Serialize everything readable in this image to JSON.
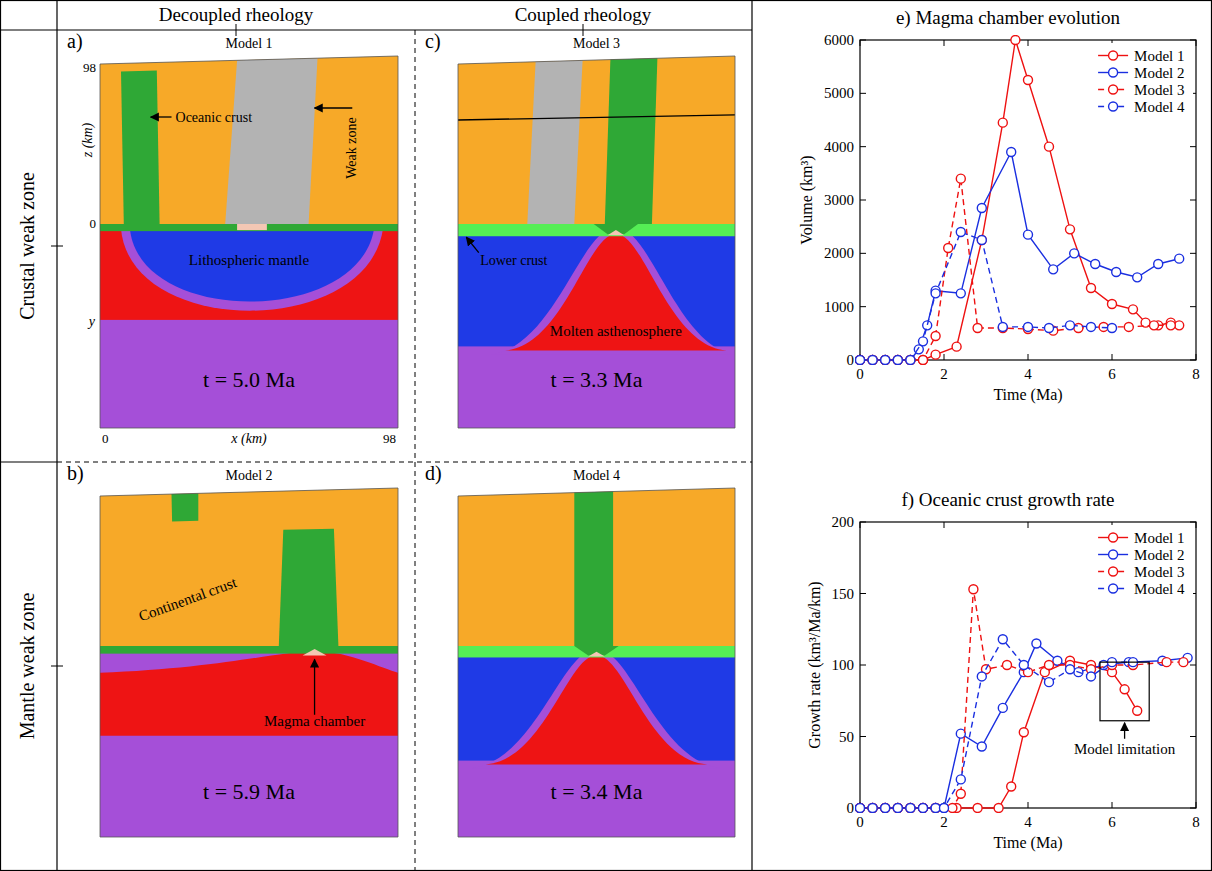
{
  "header": {
    "columns": [
      "Decoupled rheology",
      "Coupled rheology"
    ],
    "rows": [
      "Crustal weak zone",
      "Mantle weak zone"
    ]
  },
  "panels": [
    {
      "letter": "a)",
      "title": "Model 1",
      "time": "t = 5.0 Ma",
      "labels": [
        "Oceanic crust",
        "Weak zone",
        "Lithospheric mantle"
      ],
      "axes": {
        "z_max": "98",
        "z_label": "z (km)",
        "z_min": "0",
        "y_label": "y",
        "x_min": "0",
        "x_label": "x (km)",
        "x_max": "98"
      }
    },
    {
      "letter": "b)",
      "title": "Model 2",
      "time": "t = 5.9 Ma",
      "labels": [
        "Continental crust",
        "Magma chamber"
      ]
    },
    {
      "letter": "c)",
      "title": "Model 3",
      "time": "t = 3.3 Ma",
      "labels": [
        "Lower crust",
        "Molten asthenosphere"
      ]
    },
    {
      "letter": "d)",
      "title": "Model 4",
      "time": "t = 3.4 Ma",
      "labels": []
    }
  ],
  "chart_data": [
    {
      "type": "line",
      "title": "e) Magma chamber evolution",
      "x_label": "Time (Ma)",
      "y_label": "Volume (km³)",
      "xlim": [
        0,
        8
      ],
      "xticks": [
        0,
        2,
        4,
        6,
        8
      ],
      "ylim": [
        0,
        6000
      ],
      "yticks": [
        0,
        1000,
        2000,
        3000,
        4000,
        5000,
        6000
      ],
      "grid": false,
      "legend": "upper right",
      "series": [
        {
          "name": "Model 1",
          "color": "#ee1111",
          "line_style": "solid",
          "marker": "circle",
          "x": [
            0,
            0.3,
            0.6,
            0.9,
            1.2,
            1.5,
            1.8,
            2.3,
            2.9,
            3.4,
            3.7,
            4.0,
            4.5,
            5.0,
            5.5,
            6.0,
            6.5,
            6.8,
            7.1,
            7.4,
            7.6
          ],
          "values": [
            0,
            0,
            0,
            0,
            0,
            0,
            100,
            250,
            2250,
            4450,
            6000,
            5250,
            4000,
            2450,
            1350,
            1050,
            950,
            700,
            650,
            700,
            650
          ]
        },
        {
          "name": "Model 2",
          "color": "#1a2fe0",
          "line_style": "solid",
          "marker": "circle",
          "x": [
            0,
            0.3,
            0.6,
            0.9,
            1.2,
            1.4,
            1.6,
            1.8,
            2.4,
            2.9,
            3.6,
            4.0,
            4.6,
            5.1,
            5.6,
            6.1,
            6.6,
            7.1,
            7.6
          ],
          "values": [
            0,
            0,
            0,
            0,
            0,
            200,
            650,
            1300,
            1250,
            2850,
            3900,
            2350,
            1700,
            2000,
            1800,
            1650,
            1550,
            1800,
            1900
          ]
        },
        {
          "name": "Model 3",
          "color": "#ee1111",
          "line_style": "dashed",
          "marker": "circle",
          "x": [
            0,
            0.3,
            0.6,
            0.9,
            1.2,
            1.5,
            1.8,
            2.1,
            2.4,
            2.8,
            3.4,
            4.0,
            4.6,
            5.2,
            5.8,
            6.4,
            7.0,
            7.4
          ],
          "values": [
            0,
            0,
            0,
            0,
            0,
            0,
            450,
            2100,
            3400,
            600,
            600,
            580,
            550,
            600,
            620,
            620,
            650,
            650
          ]
        },
        {
          "name": "Model 4",
          "color": "#1a2fe0",
          "line_style": "dashed",
          "marker": "circle",
          "x": [
            0,
            0.3,
            0.6,
            0.9,
            1.2,
            1.5,
            1.8,
            2.4,
            2.9,
            3.4,
            4.0,
            4.5,
            5.0,
            5.5,
            6.0
          ],
          "values": [
            0,
            0,
            0,
            0,
            0,
            350,
            1250,
            2400,
            2250,
            620,
            620,
            600,
            650,
            620,
            600
          ]
        }
      ]
    },
    {
      "type": "line",
      "title": "f) Oceanic crust growth rate",
      "x_label": "Time (Ma)",
      "y_label": "Growth rate (km³/Ma/km)",
      "xlim": [
        0,
        8
      ],
      "xticks": [
        0,
        2,
        4,
        6,
        8
      ],
      "ylim": [
        0,
        200
      ],
      "yticks": [
        0,
        50,
        100,
        150,
        200
      ],
      "grid": false,
      "legend": "upper right",
      "annotations": [
        "Model limitation"
      ],
      "series": [
        {
          "name": "Model 1",
          "color": "#ee1111",
          "line_style": "solid",
          "marker": "circle",
          "x": [
            0,
            0.3,
            0.6,
            0.9,
            1.2,
            1.5,
            1.8,
            2.3,
            2.8,
            3.3,
            3.6,
            3.9,
            4.4,
            5.0,
            5.5,
            6.0,
            6.3,
            6.6
          ],
          "values": [
            0,
            0,
            0,
            0,
            0,
            0,
            0,
            0,
            0,
            0,
            15,
            53,
            95,
            103,
            100,
            95,
            83,
            68
          ]
        },
        {
          "name": "Model 2",
          "color": "#1a2fe0",
          "line_style": "solid",
          "marker": "circle",
          "x": [
            0,
            0.3,
            0.6,
            0.9,
            1.2,
            1.5,
            1.8,
            2.0,
            2.4,
            2.9,
            3.4,
            3.9,
            4.2,
            4.7,
            5.2,
            5.8,
            6.4,
            7.2,
            7.8
          ],
          "values": [
            0,
            0,
            0,
            0,
            0,
            0,
            0,
            0,
            52,
            43,
            70,
            95,
            115,
            103,
            95,
            100,
            102,
            103,
            105
          ]
        },
        {
          "name": "Model 3",
          "color": "#ee1111",
          "line_style": "dashed",
          "marker": "circle",
          "x": [
            0,
            0.3,
            0.6,
            0.9,
            1.2,
            1.5,
            1.8,
            2.2,
            2.4,
            2.7,
            3.0,
            3.5,
            4.0,
            4.5,
            5.0,
            5.5,
            6.0,
            6.5,
            7.3,
            7.7
          ],
          "values": [
            0,
            0,
            0,
            0,
            0,
            0,
            0,
            0,
            10,
            153,
            97,
            100,
            95,
            100,
            100,
            97,
            100,
            100,
            102,
            102
          ]
        },
        {
          "name": "Model 4",
          "color": "#1a2fe0",
          "line_style": "dashed",
          "marker": "circle",
          "x": [
            0,
            0.3,
            0.6,
            0.9,
            1.2,
            1.5,
            1.8,
            2.0,
            2.4,
            2.9,
            3.4,
            3.9,
            4.5,
            5.0,
            5.5,
            6.0,
            6.5
          ],
          "values": [
            0,
            0,
            0,
            0,
            0,
            0,
            0,
            0,
            20,
            92,
            118,
            100,
            88,
            97,
            92,
            102,
            102
          ]
        }
      ]
    }
  ]
}
